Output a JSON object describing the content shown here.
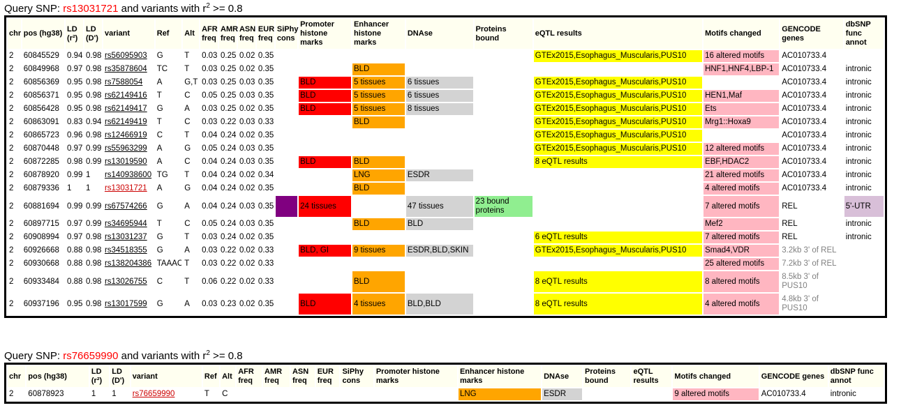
{
  "colors": {
    "promoter": "#ff0000",
    "enhancer": "#ffa500",
    "dnase": "#d3d3d3",
    "eqtl": "#ffff00",
    "motifs": "#ffb6c1",
    "proteins": "#90ee90",
    "siphy": "#800080",
    "func_utr": "#d8bfd8",
    "query_snp": "#ff0000"
  },
  "table1": {
    "title_prefix": "Query SNP: ",
    "query_snp": "rs13031721",
    "title_mid": " and variants with r",
    "title_sup": "2",
    "title_suffix": " >= 0.8",
    "headers": {
      "chr": "chr",
      "pos": "pos (hg38)",
      "ld_r2": "LD (r²)",
      "ld_d": "LD (D')",
      "variant": "variant",
      "ref": "Ref",
      "alt": "Alt",
      "afr": "AFR freq",
      "amr": "AMR freq",
      "asn": "ASN freq",
      "eur": "EUR freq",
      "siphy": "SiPhy cons",
      "promoter": "Promoter histone marks",
      "enhancer": "Enhancer histone marks",
      "dnase": "DNAse",
      "proteins": "Proteins bound",
      "eqtl": "eQTL results",
      "motifs": "Motifs changed",
      "gencode": "GENCODE genes",
      "dbsnp": "dbSNP func annot"
    },
    "rows": [
      {
        "chr": "2",
        "pos": "60845529",
        "r2": "0.94",
        "d": "0.98",
        "variant": "rs56095903",
        "ref": "G",
        "alt": "T",
        "afr": "0.03",
        "amr": "0.25",
        "asn": "0.02",
        "eur": "0.35",
        "siphy": "",
        "promoter": "",
        "enhancer": "",
        "dnase": "",
        "proteins": "",
        "eqtl": "GTEx2015,Esophagus_Muscularis,PUS10",
        "motifs": "16 altered motifs",
        "gencode": "AC010733.4",
        "dbsnp": ""
      },
      {
        "chr": "2",
        "pos": "60849968",
        "r2": "0.97",
        "d": "0.98",
        "variant": "rs35878604",
        "ref": "TC",
        "alt": "T",
        "afr": "0.03",
        "amr": "0.25",
        "asn": "0.02",
        "eur": "0.35",
        "siphy": "",
        "promoter": "",
        "enhancer": "BLD",
        "dnase": "",
        "proteins": "",
        "eqtl": "",
        "motifs": "HNF1,HNF4,LBP-1",
        "gencode": "AC010733.4",
        "dbsnp": "intronic"
      },
      {
        "chr": "2",
        "pos": "60856369",
        "r2": "0.95",
        "d": "0.98",
        "variant": "rs7588054",
        "ref": "A",
        "alt": "G,T",
        "afr": "0.03",
        "amr": "0.25",
        "asn": "0.03",
        "eur": "0.35",
        "siphy": "",
        "promoter": "BLD",
        "enhancer": "5 tissues",
        "dnase": "6 tissues",
        "proteins": "",
        "eqtl": "GTEx2015,Esophagus_Muscularis,PUS10",
        "motifs": "",
        "gencode": "AC010733.4",
        "dbsnp": "intronic"
      },
      {
        "chr": "2",
        "pos": "60856371",
        "r2": "0.95",
        "d": "0.98",
        "variant": "rs62149416",
        "ref": "T",
        "alt": "C",
        "afr": "0.05",
        "amr": "0.25",
        "asn": "0.03",
        "eur": "0.35",
        "siphy": "",
        "promoter": "BLD",
        "enhancer": "5 tissues",
        "dnase": "6 tissues",
        "proteins": "",
        "eqtl": "GTEx2015,Esophagus_Muscularis,PUS10",
        "motifs": "HEN1,Maf",
        "gencode": "AC010733.4",
        "dbsnp": "intronic"
      },
      {
        "chr": "2",
        "pos": "60856428",
        "r2": "0.95",
        "d": "0.98",
        "variant": "rs62149417",
        "ref": "G",
        "alt": "A",
        "afr": "0.03",
        "amr": "0.25",
        "asn": "0.02",
        "eur": "0.35",
        "siphy": "",
        "promoter": "BLD",
        "enhancer": "5 tissues",
        "dnase": "8 tissues",
        "proteins": "",
        "eqtl": "GTEx2015,Esophagus_Muscularis,PUS10",
        "motifs": "Ets",
        "gencode": "AC010733.4",
        "dbsnp": "intronic"
      },
      {
        "chr": "2",
        "pos": "60863091",
        "r2": "0.83",
        "d": "0.94",
        "variant": "rs62149419",
        "ref": "T",
        "alt": "C",
        "afr": "0.03",
        "amr": "0.22",
        "asn": "0.03",
        "eur": "0.33",
        "siphy": "",
        "promoter": "",
        "enhancer": "BLD",
        "dnase": "",
        "proteins": "",
        "eqtl": "GTEx2015,Esophagus_Muscularis,PUS10",
        "motifs": "Mrg1::Hoxa9",
        "gencode": "AC010733.4",
        "dbsnp": "intronic"
      },
      {
        "chr": "2",
        "pos": "60865723",
        "r2": "0.96",
        "d": "0.98",
        "variant": "rs12466919",
        "ref": "C",
        "alt": "T",
        "afr": "0.04",
        "amr": "0.24",
        "asn": "0.02",
        "eur": "0.35",
        "siphy": "",
        "promoter": "",
        "enhancer": "",
        "dnase": "",
        "proteins": "",
        "eqtl": "GTEx2015,Esophagus_Muscularis,PUS10",
        "motifs": "",
        "gencode": "AC010733.4",
        "dbsnp": "intronic"
      },
      {
        "chr": "2",
        "pos": "60870448",
        "r2": "0.97",
        "d": "0.99",
        "variant": "rs55963299",
        "ref": "A",
        "alt": "G",
        "afr": "0.05",
        "amr": "0.24",
        "asn": "0.03",
        "eur": "0.35",
        "siphy": "",
        "promoter": "",
        "enhancer": "",
        "dnase": "",
        "proteins": "",
        "eqtl": "GTEx2015,Esophagus_Muscularis,PUS10",
        "motifs": "12 altered motifs",
        "gencode": "AC010733.4",
        "dbsnp": "intronic"
      },
      {
        "chr": "2",
        "pos": "60872285",
        "r2": "0.98",
        "d": "0.99",
        "variant": "rs13019590",
        "ref": "A",
        "alt": "C",
        "afr": "0.04",
        "amr": "0.24",
        "asn": "0.03",
        "eur": "0.35",
        "siphy": "",
        "promoter": "BLD",
        "enhancer": "BLD",
        "dnase": "",
        "proteins": "",
        "eqtl": "8 eQTL results",
        "motifs": "EBF,HDAC2",
        "gencode": "AC010733.4",
        "dbsnp": "intronic"
      },
      {
        "chr": "2",
        "pos": "60878920",
        "r2": "0.99",
        "d": "1",
        "variant": "rs140938600",
        "ref": "TG",
        "alt": "T",
        "afr": "0.04",
        "amr": "0.24",
        "asn": "0.02",
        "eur": "0.34",
        "siphy": "",
        "promoter": "",
        "enhancer": "LNG",
        "dnase": "ESDR",
        "proteins": "",
        "eqtl": "",
        "motifs": "21 altered motifs",
        "gencode": "AC010733.4",
        "dbsnp": "intronic"
      },
      {
        "chr": "2",
        "pos": "60879336",
        "r2": "1",
        "d": "1",
        "variant": "rs13031721",
        "query": true,
        "ref": "A",
        "alt": "G",
        "afr": "0.04",
        "amr": "0.24",
        "asn": "0.02",
        "eur": "0.35",
        "siphy": "",
        "promoter": "",
        "enhancer": "BLD",
        "dnase": "",
        "proteins": "",
        "eqtl": "",
        "motifs": "4 altered motifs",
        "gencode": "AC010733.4",
        "dbsnp": "intronic"
      },
      {
        "chr": "2",
        "pos": "60881694",
        "r2": "0.99",
        "d": "0.99",
        "variant": "rs67574266",
        "ref": "G",
        "alt": "A",
        "afr": "0.04",
        "amr": "0.24",
        "asn": "0.03",
        "eur": "0.35",
        "siphy": "purple",
        "promoter": "24 tissues",
        "enhancer": "",
        "dnase": "47 tissues",
        "proteins": "23 bound proteins",
        "eqtl": "",
        "motifs": "7 altered motifs",
        "gencode": "REL",
        "dbsnp": "5'-UTR",
        "tall": true
      },
      {
        "chr": "2",
        "pos": "60897715",
        "r2": "0.97",
        "d": "0.99",
        "variant": "rs34695944",
        "ref": "T",
        "alt": "C",
        "afr": "0.05",
        "amr": "0.24",
        "asn": "0.03",
        "eur": "0.35",
        "siphy": "",
        "promoter": "",
        "enhancer": "BLD",
        "dnase": "BLD",
        "proteins": "",
        "eqtl": "",
        "motifs": "Mef2",
        "gencode": "REL",
        "dbsnp": "intronic"
      },
      {
        "chr": "2",
        "pos": "60908994",
        "r2": "0.97",
        "d": "0.98",
        "variant": "rs13031237",
        "ref": "G",
        "alt": "T",
        "afr": "0.03",
        "amr": "0.24",
        "asn": "0.02",
        "eur": "0.35",
        "siphy": "",
        "promoter": "",
        "enhancer": "",
        "dnase": "",
        "proteins": "",
        "eqtl": "6 eQTL results",
        "motifs": "7 altered motifs",
        "gencode": "REL",
        "dbsnp": "intronic"
      },
      {
        "chr": "2",
        "pos": "60926668",
        "r2": "0.88",
        "d": "0.98",
        "variant": "rs34518355",
        "ref": "G",
        "alt": "A",
        "afr": "0.03",
        "amr": "0.22",
        "asn": "0.02",
        "eur": "0.33",
        "siphy": "",
        "promoter": "BLD, GI",
        "enhancer": "9 tissues",
        "dnase": "ESDR,BLD,SKIN",
        "proteins": "",
        "eqtl": "GTEx2015,Esophagus_Muscularis,PUS10",
        "motifs": "Smad4,VDR",
        "gencode": "3.2kb 3' of REL",
        "gencode_muted": true,
        "dbsnp": ""
      },
      {
        "chr": "2",
        "pos": "60930668",
        "r2": "0.88",
        "d": "0.98",
        "variant": "rs138204386",
        "ref": "TAAAC",
        "alt": "T",
        "afr": "0.03",
        "amr": "0.22",
        "asn": "0.02",
        "eur": "0.33",
        "siphy": "",
        "promoter": "",
        "enhancer": "",
        "dnase": "",
        "proteins": "",
        "eqtl": "",
        "motifs": "25 altered motifs",
        "gencode": "7.2kb 3' of REL",
        "gencode_muted": true,
        "dbsnp": ""
      },
      {
        "chr": "2",
        "pos": "60933484",
        "r2": "0.88",
        "d": "0.98",
        "variant": "rs13026755",
        "ref": "C",
        "alt": "T",
        "afr": "0.06",
        "amr": "0.22",
        "asn": "0.02",
        "eur": "0.33",
        "siphy": "",
        "promoter": "",
        "enhancer": "BLD",
        "dnase": "",
        "proteins": "",
        "eqtl": "8 eQTL results",
        "motifs": "8 altered motifs",
        "gencode": "8.5kb 3' of PUS10",
        "gencode_muted": true,
        "dbsnp": "",
        "tall": true
      },
      {
        "chr": "2",
        "pos": "60937196",
        "r2": "0.95",
        "d": "0.98",
        "variant": "rs13017599",
        "ref": "G",
        "alt": "A",
        "afr": "0.03",
        "amr": "0.23",
        "asn": "0.02",
        "eur": "0.35",
        "siphy": "",
        "promoter": "BLD",
        "enhancer": "4 tissues",
        "dnase": "BLD,BLD",
        "proteins": "",
        "eqtl": "8 eQTL results",
        "motifs": "4 altered motifs",
        "gencode": "4.8kb 3' of PUS10",
        "gencode_muted": true,
        "dbsnp": "",
        "tall": true
      }
    ]
  },
  "table2": {
    "title_prefix": "Query SNP: ",
    "query_snp": "rs76659990",
    "title_mid": " and variants with r",
    "title_sup": "2",
    "title_suffix": " >= 0.8",
    "headers": {
      "chr": "chr",
      "pos": "pos (hg38)",
      "ld_r2": "LD (r²)",
      "ld_d": "LD (D')",
      "variant": "variant",
      "ref": "Ref",
      "alt": "Alt",
      "afr": "AFR freq",
      "amr": "AMR freq",
      "asn": "ASN freq",
      "eur": "EUR freq",
      "siphy": "SiPhy cons",
      "promoter": "Promoter histone marks",
      "enhancer": "Enhancer histone marks",
      "dnase": "DNAse",
      "proteins": "Proteins bound",
      "eqtl": "eQTL results",
      "motifs": "Motifs changed",
      "gencode": "GENCODE genes",
      "dbsnp": "dbSNP func annot"
    },
    "rows": [
      {
        "chr": "2",
        "pos": "60878923",
        "r2": "1",
        "d": "1",
        "variant": "rs76659990",
        "query": true,
        "ref": "T",
        "alt": "C",
        "afr": "",
        "amr": "",
        "asn": "",
        "eur": "",
        "siphy": "",
        "promoter": "",
        "enhancer": "LNG",
        "dnase": "ESDR",
        "proteins": "",
        "eqtl": "",
        "motifs": "9 altered motifs",
        "gencode": "AC010733.4",
        "dbsnp": "intronic"
      }
    ]
  }
}
